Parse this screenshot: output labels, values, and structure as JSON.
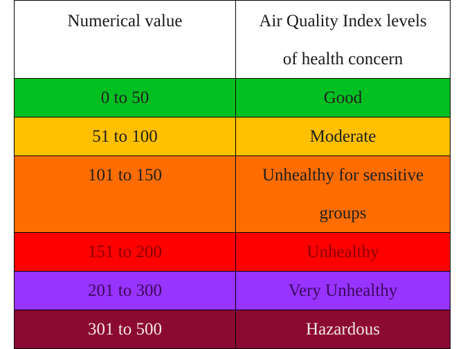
{
  "table": {
    "headers": {
      "value": "Numerical value",
      "level_line1": "Air Quality Index levels",
      "level_line2": "of health concern"
    },
    "rows": [
      {
        "range": "0 to 50",
        "level": "Good",
        "color": "#00c021"
      },
      {
        "range": "51 to 100",
        "level": "Moderate",
        "color": "#ffc000"
      },
      {
        "range": "101 to 150",
        "level_line1": "Unhealthy for sensitive",
        "level_line2": "groups",
        "color": "#ff6d00"
      },
      {
        "range": "151 to 200",
        "level": "Unhealthy",
        "color": "#ff0000"
      },
      {
        "range": "201 to 300",
        "level": "Very Unhealthy",
        "color": "#9933ff"
      },
      {
        "range": "301 to 500",
        "level": "Hazardous",
        "color": "#8b0a33"
      }
    ]
  }
}
